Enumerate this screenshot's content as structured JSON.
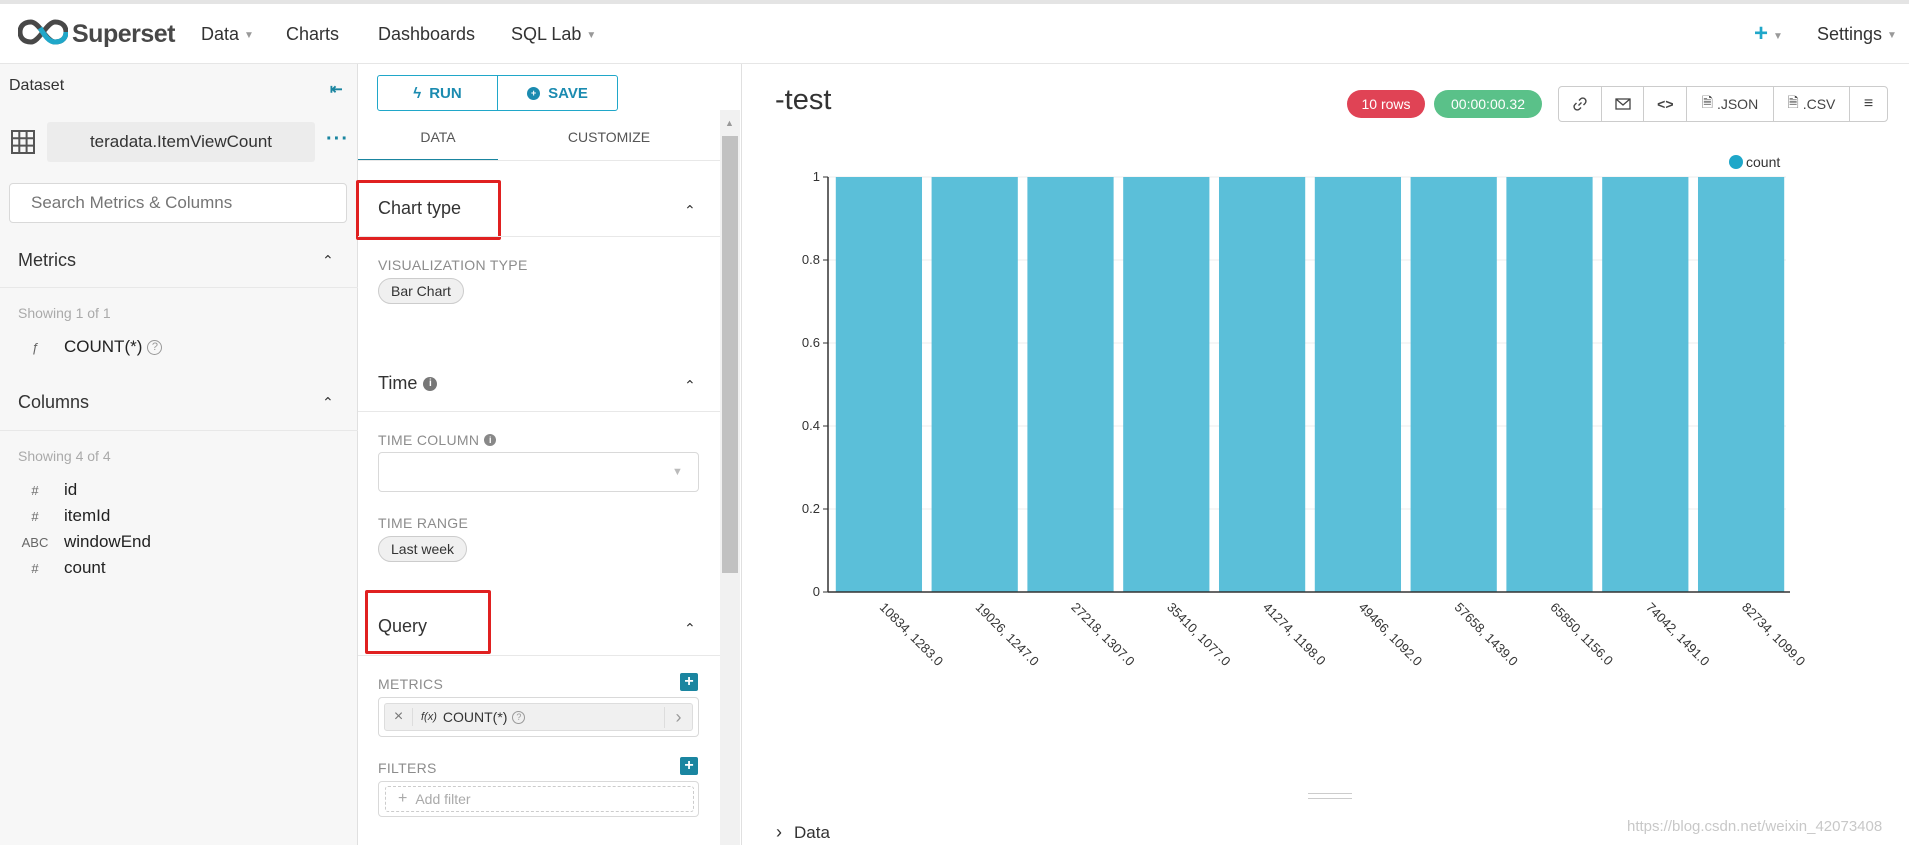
{
  "nav": {
    "brand": "Superset",
    "items": [
      {
        "label": "Data",
        "has_caret": true
      },
      {
        "label": "Charts",
        "has_caret": false
      },
      {
        "label": "Dashboards",
        "has_caret": false
      },
      {
        "label": "SQL Lab",
        "has_caret": true
      }
    ],
    "settings_label": "Settings",
    "plus_label": "+"
  },
  "dataset_panel": {
    "title": "Dataset",
    "dataset_name": "teradata.ItemViewCount",
    "search_placeholder": "Search Metrics & Columns",
    "metrics_title": "Metrics",
    "metrics_showing": "Showing 1 of 1",
    "metrics": [
      {
        "type": "ƒ",
        "name": "COUNT(*)"
      }
    ],
    "columns_title": "Columns",
    "columns_showing": "Showing 4 of 4",
    "columns": [
      {
        "type": "#",
        "name": "id"
      },
      {
        "type": "#",
        "name": "itemId"
      },
      {
        "type": "ABC",
        "name": "windowEnd"
      },
      {
        "type": "#",
        "name": "count"
      }
    ]
  },
  "control_panel": {
    "run_label": "RUN",
    "save_label": "SAVE",
    "tabs": [
      "DATA",
      "CUSTOMIZE"
    ],
    "chart_type_section": "Chart type",
    "viz_type_label": "VISUALIZATION TYPE",
    "viz_type_value": "Bar Chart",
    "time_section": "Time",
    "time_column_label": "TIME COLUMN",
    "time_range_label": "TIME RANGE",
    "time_range_value": "Last week",
    "query_section": "Query",
    "metrics_label": "METRICS",
    "metric_value": "COUNT(*)",
    "metric_fx": "f(x)",
    "filters_label": "FILTERS",
    "add_filter_label": "Add filter"
  },
  "chart_header": {
    "title": "-test",
    "rows_badge": "10 rows",
    "time_badge": "00:00:00.32",
    "toolbar": [
      {
        "icon": "link-icon",
        "label": ""
      },
      {
        "icon": "mail-icon",
        "label": ""
      },
      {
        "icon": "code-icon",
        "label": ""
      },
      {
        "icon": "file-icon",
        "label": ".JSON"
      },
      {
        "icon": "file-icon",
        "label": ".CSV"
      },
      {
        "icon": "menu-icon",
        "label": ""
      }
    ],
    "colors": {
      "rows_badge": "#e04355",
      "time_badge": "#5ac189",
      "accent": "#20a7c9"
    }
  },
  "chart_data": {
    "type": "bar",
    "categories": [
      "10834, 1283.0",
      "19026, 1247.0",
      "27218, 1307.0",
      "35410, 1077.0",
      "41274, 1198.0",
      "49466, 1092.0",
      "57658, 1439.0",
      "65850, 1156.0",
      "74042, 1491.0",
      "82734, 1099.0"
    ],
    "series": [
      {
        "name": "count",
        "values": [
          1,
          1,
          1,
          1,
          1,
          1,
          1,
          1,
          1,
          1
        ],
        "color": "#5bbfd9"
      }
    ],
    "ylim": [
      0,
      1
    ],
    "yticks": [
      "0",
      "0.2",
      "0.4",
      "0.6",
      "0.8",
      "1"
    ],
    "legend_position": "top-right",
    "grid": true
  },
  "data_section_label": "Data",
  "watermark": "https://blog.csdn.net/weixin_42073408"
}
